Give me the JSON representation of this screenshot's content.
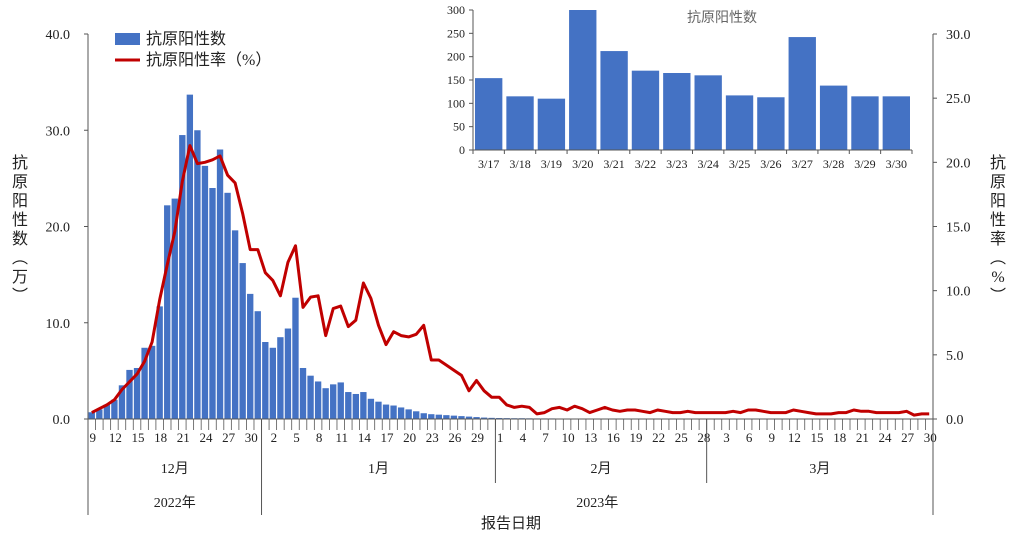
{
  "chart_data": {
    "type": "bar+line",
    "xlabel": "报告日期",
    "y_left": {
      "label": "抗原阳性数（万）",
      "ylim": [
        0,
        40
      ],
      "ticks": [
        "0.0",
        "10.0",
        "20.0",
        "30.0",
        "40.0"
      ]
    },
    "y_right": {
      "label": "抗原阳性率（%）",
      "ylim": [
        0,
        30
      ],
      "ticks": [
        "0.0",
        "5.0",
        "10.0",
        "15.0",
        "20.0",
        "25.0",
        "30.0"
      ]
    },
    "legend": {
      "position": "top-left",
      "bar": "抗原阳性数",
      "line": "抗原阳性率（%）"
    },
    "months": [
      {
        "label": "12月",
        "days": 23,
        "first_day": 9
      },
      {
        "label": "1月",
        "days": 31,
        "first_day": 1
      },
      {
        "label": "2月",
        "days": 28,
        "first_day": 1
      },
      {
        "label": "3月",
        "days": 30,
        "first_day": 1
      }
    ],
    "years": [
      {
        "label": "2022年",
        "months": 1
      },
      {
        "label": "2023年",
        "months": 3
      }
    ],
    "tick_labels": [
      "9",
      "12",
      "15",
      "18",
      "21",
      "24",
      "27",
      "30",
      "2",
      "5",
      "8",
      "11",
      "14",
      "17",
      "20",
      "23",
      "26",
      "29",
      "1",
      "4",
      "7",
      "10",
      "13",
      "16",
      "19",
      "22",
      "25",
      "28",
      "3",
      "6",
      "9",
      "12",
      "15",
      "18",
      "21",
      "24",
      "27",
      "30"
    ],
    "series": [
      {
        "name": "抗原阳性数",
        "axis": "left",
        "kind": "bar",
        "color": "#4472C4",
        "values": [
          0.7,
          1.0,
          1.5,
          2.0,
          3.5,
          5.1,
          5.3,
          7.4,
          7.6,
          11.7,
          22.2,
          22.9,
          29.5,
          33.7,
          30.0,
          26.3,
          24.0,
          28.0,
          23.5,
          19.6,
          16.2,
          13.0,
          11.2,
          8.0,
          7.4,
          8.5,
          9.4,
          12.6,
          5.3,
          4.5,
          3.9,
          3.2,
          3.6,
          3.8,
          2.8,
          2.6,
          2.8,
          2.1,
          1.8,
          1.5,
          1.4,
          1.2,
          1.0,
          0.8,
          0.6,
          0.5,
          0.45,
          0.4,
          0.35,
          0.3,
          0.25,
          0.2,
          0.15,
          0.12,
          0.1,
          0.09,
          0.08,
          0.08,
          0.07,
          0.06,
          0.06,
          0.06,
          0.05,
          0.05,
          0.05,
          0.05,
          0.04,
          0.04,
          0.04,
          0.04,
          0.04,
          0.04,
          0.03,
          0.03,
          0.03,
          0.03,
          0.03,
          0.03,
          0.03,
          0.03,
          0.03,
          0.03,
          0.03,
          0.03,
          0.03,
          0.02,
          0.02,
          0.02,
          0.02,
          0.02,
          0.02,
          0.02,
          0.02,
          0.02,
          0.02,
          0.02,
          0.02,
          0.02,
          0.0154,
          0.0115,
          0.011,
          0.03,
          0.0212,
          0.017,
          0.0165,
          0.016,
          0.0117,
          0.0113,
          0.0242,
          0.0138,
          0.0115,
          0.0115
        ]
      },
      {
        "name": "抗原阳性率（%）",
        "axis": "right",
        "kind": "line",
        "color": "#C00000",
        "values": [
          0.5,
          0.8,
          1.1,
          1.5,
          2.3,
          2.9,
          3.5,
          4.5,
          6.0,
          9.3,
          12.0,
          14.6,
          18.5,
          21.3,
          19.9,
          20.0,
          20.2,
          20.5,
          19.0,
          18.4,
          16.0,
          13.2,
          13.2,
          11.4,
          10.8,
          9.6,
          12.2,
          13.5,
          8.7,
          9.5,
          9.6,
          6.5,
          8.6,
          8.8,
          7.2,
          7.7,
          10.6,
          9.4,
          7.3,
          5.8,
          6.8,
          6.5,
          6.4,
          6.6,
          7.3,
          4.6,
          4.6,
          4.2,
          3.8,
          3.4,
          2.2,
          3.0,
          2.2,
          1.7,
          1.7,
          1.1,
          0.9,
          1.0,
          0.9,
          0.4,
          0.5,
          0.8,
          0.9,
          0.7,
          1.0,
          0.8,
          0.5,
          0.7,
          0.9,
          0.7,
          0.6,
          0.7,
          0.7,
          0.6,
          0.5,
          0.7,
          0.6,
          0.5,
          0.5,
          0.6,
          0.5,
          0.5,
          0.5,
          0.5,
          0.5,
          0.6,
          0.5,
          0.7,
          0.7,
          0.6,
          0.5,
          0.5,
          0.5,
          0.7,
          0.6,
          0.5,
          0.4,
          0.4,
          0.4,
          0.5,
          0.5,
          0.7,
          0.6,
          0.6,
          0.5,
          0.5,
          0.5,
          0.5,
          0.6,
          0.3,
          0.4,
          0.4
        ]
      }
    ],
    "inset": {
      "type": "bar",
      "title": "抗原阳性数",
      "categories": [
        "3/17",
        "3/18",
        "3/19",
        "3/20",
        "3/21",
        "3/22",
        "3/23",
        "3/24",
        "3/25",
        "3/26",
        "3/27",
        "3/28",
        "3/29",
        "3/30"
      ],
      "values": [
        154,
        115,
        110,
        300,
        212,
        170,
        165,
        160,
        117,
        113,
        242,
        138,
        115,
        115
      ],
      "ylim": [
        0,
        300
      ],
      "ticks": [
        "0",
        "50",
        "100",
        "150",
        "200",
        "250",
        "300"
      ],
      "color": "#4472C4"
    }
  }
}
